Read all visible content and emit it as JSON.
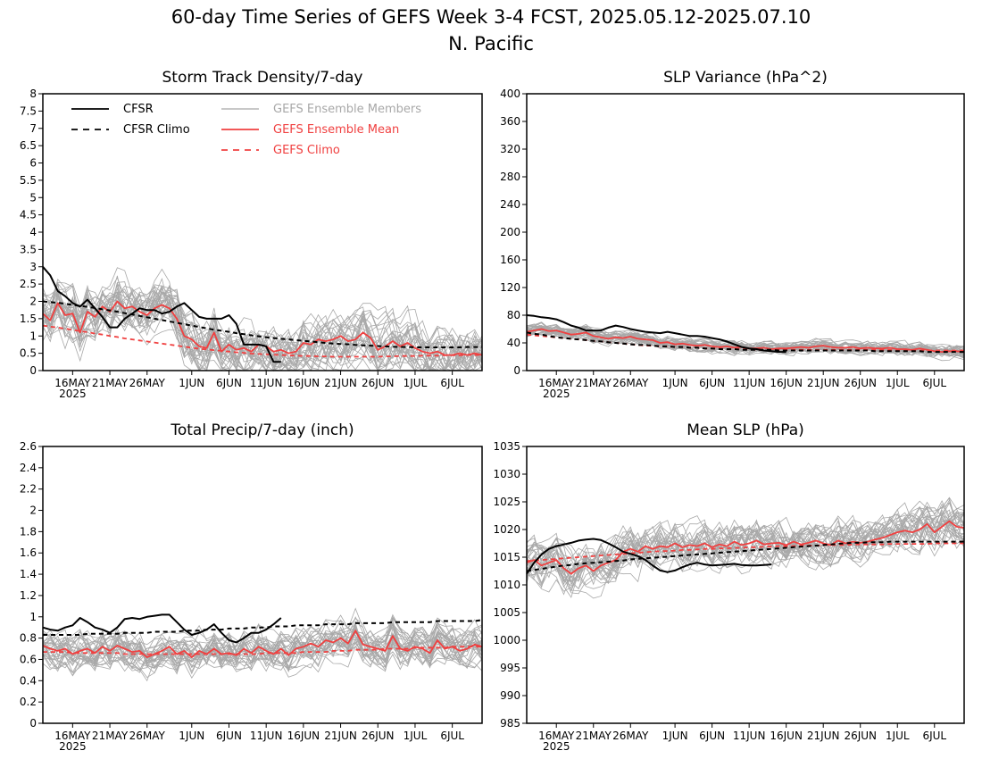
{
  "figure": {
    "title_line1": "60-day Time Series of GEFS Week 3-4 FCST, 2025.05.12-2025.07.10",
    "title_line2": "N. Pacific"
  },
  "colors": {
    "cfsr": "#000000",
    "members": "#a8a8a8",
    "ens_mean": "#f04040",
    "gefs_climo": "#f04040"
  },
  "legend": {
    "cfsr": "CFSR",
    "cfsr_climo": "CFSR Climo",
    "members": "GEFS Ensemble Members",
    "ens_mean": "GEFS Ensemble Mean",
    "gefs_climo": "GEFS Climo"
  },
  "chart_data": [
    {
      "id": "storm",
      "type": "line",
      "title": "Storm Track Density/7-day",
      "x_tick_labels": [
        "16MAY",
        "21MAY",
        "26MAY",
        "1JUN",
        "6JUN",
        "11JUN",
        "16JUN",
        "21JUN",
        "26JUN",
        "1JUL",
        "6JUL"
      ],
      "x_tick_days": [
        4,
        9,
        14,
        20,
        25,
        30,
        35,
        40,
        45,
        50,
        55
      ],
      "year_label": "2025",
      "xlim": [
        0,
        59
      ],
      "ylim": [
        0,
        8
      ],
      "y_ticks": [
        "0",
        "0.5",
        "1",
        "1.5",
        "2",
        "2.5",
        "3",
        "3.5",
        "4",
        "4.5",
        "5",
        "5.5",
        "6",
        "6.5",
        "7",
        "7.5",
        "8"
      ],
      "cfsr": [
        3.0,
        2.75,
        2.3,
        2.15,
        1.95,
        1.85,
        2.05,
        1.8,
        1.55,
        1.25,
        1.25,
        1.5,
        1.65,
        1.8,
        1.75,
        1.75,
        1.65,
        1.7,
        1.85,
        1.95,
        1.75,
        1.55,
        1.5,
        1.5,
        1.5,
        1.6,
        1.35,
        0.75,
        0.75,
        0.75,
        0.7,
        0.25,
        0.25
      ],
      "cfsr_climo": [
        2.0,
        1.98,
        1.96,
        1.93,
        1.9,
        1.87,
        1.84,
        1.81,
        1.77,
        1.74,
        1.7,
        1.66,
        1.62,
        1.58,
        1.54,
        1.5,
        1.46,
        1.42,
        1.38,
        1.34,
        1.3,
        1.26,
        1.22,
        1.18,
        1.15,
        1.12,
        1.08,
        1.05,
        1.02,
        0.99,
        0.96,
        0.94,
        0.92,
        0.9,
        0.88,
        0.86,
        0.84,
        0.82,
        0.8,
        0.78,
        0.77,
        0.76,
        0.74,
        0.73,
        0.72,
        0.71,
        0.7,
        0.69,
        0.68,
        0.68,
        0.67,
        0.67,
        0.67,
        0.67,
        0.67,
        0.67,
        0.67,
        0.68,
        0.68,
        0.68
      ],
      "ens_mean": [
        1.65,
        1.45,
        1.95,
        1.6,
        1.65,
        1.1,
        1.7,
        1.55,
        1.85,
        1.7,
        2.0,
        1.8,
        1.85,
        1.7,
        1.6,
        1.8,
        1.9,
        1.8,
        1.5,
        1.0,
        0.9,
        0.7,
        0.65,
        1.1,
        0.55,
        0.75,
        0.6,
        0.65,
        0.55,
        0.75,
        0.7,
        0.55,
        0.6,
        0.5,
        0.55,
        0.8,
        0.75,
        0.9,
        0.85,
        0.9,
        1.0,
        0.85,
        0.9,
        1.1,
        0.95,
        0.6,
        0.7,
        0.85,
        0.7,
        0.8,
        0.65,
        0.55,
        0.5,
        0.55,
        0.45,
        0.45,
        0.5,
        0.45,
        0.5,
        0.45
      ],
      "gefs_climo": [
        1.3,
        1.27,
        1.24,
        1.21,
        1.18,
        1.14,
        1.11,
        1.07,
        1.04,
        1.0,
        0.97,
        0.93,
        0.9,
        0.87,
        0.84,
        0.81,
        0.78,
        0.75,
        0.72,
        0.69,
        0.66,
        0.63,
        0.61,
        0.59,
        0.57,
        0.55,
        0.53,
        0.51,
        0.49,
        0.48,
        0.47,
        0.46,
        0.45,
        0.44,
        0.43,
        0.42,
        0.42,
        0.41,
        0.41,
        0.4,
        0.4,
        0.4,
        0.4,
        0.4,
        0.4,
        0.4,
        0.41,
        0.41,
        0.42,
        0.42,
        0.42,
        0.43,
        0.43,
        0.43,
        0.44,
        0.44,
        0.44,
        0.45,
        0.45,
        0.45
      ],
      "members": {
        "count": 30,
        "spread": 0.75,
        "floor": 0
      }
    },
    {
      "id": "slpvar",
      "type": "line",
      "title": "SLP Variance (hPa^2)",
      "x_tick_labels": [
        "16MAY",
        "21MAY",
        "26MAY",
        "1JUN",
        "6JUN",
        "11JUN",
        "16JUN",
        "21JUN",
        "26JUN",
        "1JUL",
        "6JUL"
      ],
      "x_tick_days": [
        4,
        9,
        14,
        20,
        25,
        30,
        35,
        40,
        45,
        50,
        55
      ],
      "year_label": "2025",
      "xlim": [
        0,
        59
      ],
      "ylim": [
        0,
        400
      ],
      "y_ticks": [
        "0",
        "40",
        "80",
        "120",
        "160",
        "200",
        "240",
        "280",
        "320",
        "360",
        "400"
      ],
      "cfsr": [
        80,
        79,
        77,
        76,
        74,
        70,
        65,
        62,
        58,
        58,
        58,
        62,
        65,
        63,
        60,
        58,
        56,
        55,
        54,
        56,
        54,
        52,
        50,
        50,
        49,
        47,
        45,
        42,
        38,
        34,
        32,
        31,
        29,
        28,
        27,
        27
      ],
      "cfsr_climo": [
        55,
        53,
        52,
        50,
        48,
        47,
        46,
        45,
        44,
        43,
        42,
        41,
        40,
        39,
        38,
        37,
        37,
        36,
        35,
        35,
        34,
        34,
        33,
        33,
        32,
        32,
        31,
        31,
        31,
        30,
        30,
        30,
        30,
        30,
        29,
        29,
        29,
        29,
        29,
        29,
        29,
        29,
        29,
        29,
        29,
        29,
        29,
        28,
        28,
        28,
        28,
        28,
        28,
        28,
        27,
        27,
        27,
        27,
        27,
        27
      ],
      "ens_mean": [
        56,
        58,
        60,
        57,
        58,
        55,
        52,
        53,
        55,
        50,
        48,
        46,
        48,
        47,
        49,
        46,
        45,
        44,
        40,
        41,
        38,
        39,
        37,
        36,
        37,
        35,
        34,
        35,
        33,
        34,
        32,
        32,
        33,
        31,
        32,
        32,
        33,
        34,
        33,
        35,
        36,
        34,
        33,
        33,
        34,
        32,
        33,
        32,
        32,
        33,
        31,
        31,
        30,
        32,
        30,
        28,
        27,
        28,
        28,
        27
      ],
      "gefs_climo": [
        52,
        51,
        50,
        49,
        48,
        47,
        46,
        45,
        44,
        43,
        42,
        41,
        40,
        39,
        38,
        37,
        36,
        36,
        35,
        35,
        34,
        34,
        33,
        33,
        32,
        32,
        32,
        31,
        31,
        31,
        31,
        30,
        30,
        30,
        30,
        30,
        30,
        30,
        30,
        30,
        30,
        30,
        30,
        30,
        30,
        30,
        30,
        30,
        30,
        30,
        29,
        29,
        29,
        29,
        29,
        29,
        29,
        29,
        29,
        29
      ],
      "members": {
        "count": 30,
        "spread": 9,
        "floor": 10
      }
    },
    {
      "id": "precip",
      "type": "line",
      "title": "Total Precip/7-day (inch)",
      "x_tick_labels": [
        "16MAY",
        "21MAY",
        "26MAY",
        "1JUN",
        "6JUN",
        "11JUN",
        "16JUN",
        "21JUN",
        "26JUN",
        "1JUL",
        "6JUL"
      ],
      "x_tick_days": [
        4,
        9,
        14,
        20,
        25,
        30,
        35,
        40,
        45,
        50,
        55
      ],
      "year_label": "2025",
      "xlim": [
        0,
        59
      ],
      "ylim": [
        0,
        2.6
      ],
      "y_ticks": [
        "0",
        "0.2",
        "0.4",
        "0.6",
        "0.8",
        "1",
        "1.2",
        "1.4",
        "1.6",
        "1.8",
        "2",
        "2.2",
        "2.4",
        "2.6"
      ],
      "cfsr": [
        0.9,
        0.88,
        0.87,
        0.9,
        0.92,
        0.99,
        0.95,
        0.9,
        0.88,
        0.85,
        0.9,
        0.98,
        0.99,
        0.98,
        1.0,
        1.01,
        1.02,
        1.02,
        0.95,
        0.88,
        0.83,
        0.85,
        0.88,
        0.93,
        0.85,
        0.78,
        0.76,
        0.8,
        0.85,
        0.85,
        0.88,
        0.93,
        0.99
      ],
      "cfsr_climo": [
        0.83,
        0.83,
        0.83,
        0.83,
        0.83,
        0.83,
        0.84,
        0.84,
        0.84,
        0.84,
        0.84,
        0.85,
        0.85,
        0.85,
        0.85,
        0.86,
        0.86,
        0.86,
        0.86,
        0.87,
        0.87,
        0.87,
        0.88,
        0.88,
        0.88,
        0.89,
        0.89,
        0.89,
        0.9,
        0.9,
        0.9,
        0.91,
        0.91,
        0.91,
        0.92,
        0.92,
        0.92,
        0.92,
        0.93,
        0.93,
        0.93,
        0.93,
        0.94,
        0.94,
        0.94,
        0.94,
        0.94,
        0.95,
        0.95,
        0.95,
        0.95,
        0.95,
        0.95,
        0.96,
        0.96,
        0.96,
        0.96,
        0.96,
        0.96,
        0.97
      ],
      "ens_mean": [
        0.73,
        0.7,
        0.68,
        0.7,
        0.65,
        0.68,
        0.7,
        0.66,
        0.72,
        0.68,
        0.73,
        0.7,
        0.67,
        0.68,
        0.62,
        0.65,
        0.68,
        0.72,
        0.65,
        0.68,
        0.62,
        0.68,
        0.65,
        0.7,
        0.65,
        0.66,
        0.64,
        0.7,
        0.66,
        0.72,
        0.68,
        0.65,
        0.7,
        0.64,
        0.7,
        0.72,
        0.75,
        0.72,
        0.78,
        0.76,
        0.8,
        0.75,
        0.87,
        0.74,
        0.72,
        0.7,
        0.68,
        0.82,
        0.7,
        0.68,
        0.72,
        0.7,
        0.66,
        0.78,
        0.7,
        0.72,
        0.68,
        0.7,
        0.74,
        0.72
      ],
      "gefs_climo": [
        0.67,
        0.67,
        0.67,
        0.67,
        0.66,
        0.66,
        0.66,
        0.66,
        0.66,
        0.66,
        0.66,
        0.65,
        0.65,
        0.65,
        0.65,
        0.65,
        0.65,
        0.65,
        0.65,
        0.65,
        0.65,
        0.65,
        0.65,
        0.65,
        0.65,
        0.65,
        0.65,
        0.65,
        0.65,
        0.65,
        0.66,
        0.66,
        0.66,
        0.66,
        0.66,
        0.67,
        0.67,
        0.67,
        0.67,
        0.68,
        0.68,
        0.68,
        0.69,
        0.69,
        0.69,
        0.69,
        0.7,
        0.7,
        0.7,
        0.7,
        0.71,
        0.71,
        0.71,
        0.71,
        0.71,
        0.72,
        0.72,
        0.72,
        0.72,
        0.72
      ],
      "members": {
        "count": 30,
        "spread": 0.17,
        "floor": 0.15
      }
    },
    {
      "id": "mslp",
      "type": "line",
      "title": "Mean SLP (hPa)",
      "x_tick_labels": [
        "16MAY",
        "21MAY",
        "26MAY",
        "1JUN",
        "6JUN",
        "11JUN",
        "16JUN",
        "21JUN",
        "26JUN",
        "1JUL",
        "6JUL"
      ],
      "x_tick_days": [
        4,
        9,
        14,
        20,
        25,
        30,
        35,
        40,
        45,
        50,
        55
      ],
      "year_label": "2025",
      "xlim": [
        0,
        59
      ],
      "ylim": [
        985,
        1035
      ],
      "y_ticks": [
        "985",
        "990",
        "995",
        "1000",
        "1005",
        "1010",
        "1015",
        "1020",
        "1025",
        "1030",
        "1035"
      ],
      "cfsr": [
        1012,
        1014,
        1015.5,
        1016.5,
        1017,
        1017.3,
        1017.6,
        1018,
        1018.2,
        1018.3,
        1018.1,
        1017.5,
        1016.8,
        1016,
        1015.6,
        1015.2,
        1014.5,
        1013.5,
        1012.6,
        1012.3,
        1012.6,
        1013.2,
        1013.7,
        1014,
        1013.7,
        1013.5,
        1013.6,
        1013.7,
        1013.8,
        1013.6,
        1013.5,
        1013.5,
        1013.6,
        1013.7
      ],
      "cfsr_climo": [
        1012.5,
        1012.7,
        1012.9,
        1013.1,
        1013.3,
        1013.5,
        1013.6,
        1013.8,
        1013.9,
        1014.0,
        1014.1,
        1014.2,
        1014.3,
        1014.4,
        1014.6,
        1014.7,
        1014.8,
        1014.9,
        1015.0,
        1015.1,
        1015.2,
        1015.3,
        1015.4,
        1015.5,
        1015.6,
        1015.7,
        1015.8,
        1015.9,
        1016.0,
        1016.1,
        1016.2,
        1016.3,
        1016.4,
        1016.5,
        1016.6,
        1016.7,
        1016.8,
        1016.9,
        1017.0,
        1017.1,
        1017.2,
        1017.3,
        1017.4,
        1017.5,
        1017.6,
        1017.6,
        1017.7,
        1017.7,
        1017.7,
        1017.8,
        1017.8,
        1017.8,
        1017.8,
        1017.8,
        1017.8,
        1017.8,
        1017.8,
        1017.8,
        1017.8,
        1017.8
      ],
      "ens_mean": [
        1014,
        1014.5,
        1013.5,
        1014,
        1014.5,
        1013,
        1012,
        1013,
        1013.5,
        1012.5,
        1013.5,
        1014,
        1014.5,
        1016,
        1016.5,
        1016,
        1017,
        1016.5,
        1017,
        1016.8,
        1017.5,
        1016.8,
        1017.2,
        1017,
        1017.5,
        1016.8,
        1017.3,
        1017,
        1017.8,
        1017.2,
        1017.5,
        1018,
        1017.3,
        1017.5,
        1017.6,
        1017.2,
        1017.8,
        1017.3,
        1017.6,
        1018,
        1017.5,
        1017.2,
        1018,
        1017.5,
        1017.8,
        1017.6,
        1017.8,
        1018.2,
        1018.5,
        1019,
        1019.5,
        1019.8,
        1019.5,
        1020,
        1021,
        1019.5,
        1020.5,
        1021.5,
        1020.5,
        1020.3
      ],
      "gefs_climo": [
        1014.3,
        1014.4,
        1014.5,
        1014.6,
        1014.7,
        1014.8,
        1014.9,
        1015,
        1015.1,
        1015.2,
        1015.3,
        1015.4,
        1015.5,
        1015.6,
        1015.7,
        1015.8,
        1015.9,
        1016,
        1016.1,
        1016.1,
        1016.2,
        1016.3,
        1016.3,
        1016.4,
        1016.5,
        1016.5,
        1016.6,
        1016.6,
        1016.7,
        1016.7,
        1016.8,
        1016.8,
        1016.9,
        1016.9,
        1017,
        1017,
        1017,
        1017.1,
        1017.1,
        1017.1,
        1017.2,
        1017.2,
        1017.2,
        1017.2,
        1017.3,
        1017.3,
        1017.3,
        1017.3,
        1017.3,
        1017.4,
        1017.4,
        1017.4,
        1017.4,
        1017.4,
        1017.4,
        1017.5,
        1017.5,
        1017.5,
        1017.5,
        1017.5
      ],
      "members": {
        "count": 30,
        "spread": 3.8,
        "floor": 985
      }
    }
  ]
}
